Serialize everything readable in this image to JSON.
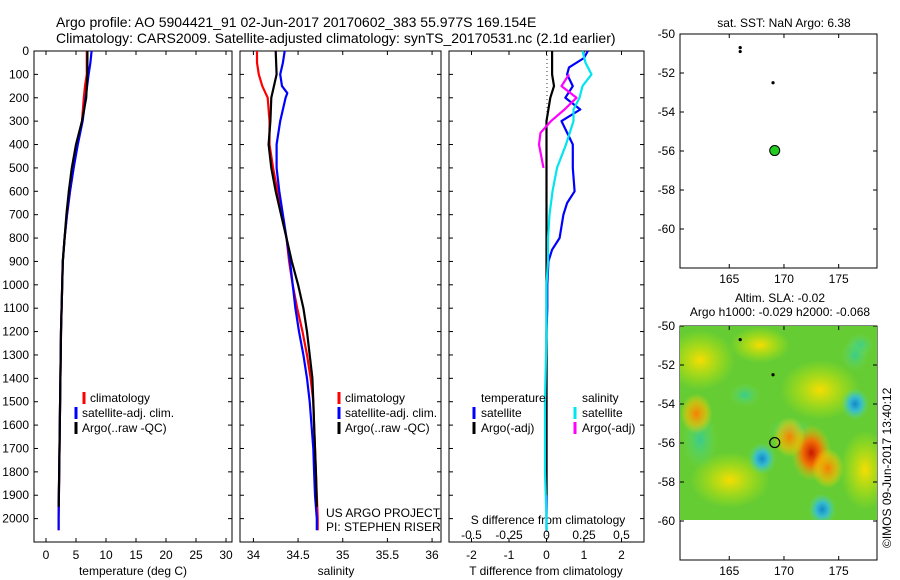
{
  "header": {
    "line1": "Argo profile: AO 5904421_91 02-Jun-2017 20170602_383 55.977S 169.154E",
    "line2": "Climatology: CARS2009. Satellite-adjusted climatology: synTS_20170531.nc (2.1d earlier)"
  },
  "colors": {
    "climatology": "#ff0000",
    "satellite": "#0000ff",
    "argo": "#000000",
    "salinity_diff": "#00e5ee",
    "salinity_diff_argo": "#ff00ff",
    "position_marker": "#22cc22"
  },
  "credit": "©IMOS 09-Jun-2017 13:40:12",
  "chart_data": [
    {
      "type": "line",
      "id": "temperature",
      "xlabel": "temperature (deg C)",
      "xlim": [
        -2,
        31
      ],
      "xticks": [
        0,
        5,
        10,
        15,
        20,
        25,
        30
      ],
      "xtick_labels": [
        "0",
        "5",
        "10",
        "15",
        "20",
        "25",
        "30"
      ],
      "ylim": [
        2100,
        0
      ],
      "yticks": [
        0,
        100,
        200,
        300,
        400,
        500,
        600,
        700,
        800,
        900,
        1000,
        1100,
        1200,
        1300,
        1400,
        1500,
        1600,
        1700,
        1800,
        1900,
        2000
      ],
      "ytick_labels": [
        "0",
        "100",
        "200",
        "300",
        "400",
        "500",
        "600",
        "700",
        "800",
        "900",
        "1000",
        "1100",
        "1200",
        "1300",
        "1400",
        "1500",
        "1600",
        "1700",
        "1800",
        "1900",
        "2000"
      ],
      "legend": [
        "climatology",
        "satellite-adj. clim.",
        "Argo(..raw -QC)"
      ],
      "series": [
        {
          "name": "climatology",
          "color": "#ff0000",
          "depth": [
            0,
            100,
            150,
            200,
            300,
            400,
            500,
            600,
            700,
            800,
            900,
            1000,
            1200,
            1400,
            1600,
            1800,
            2000,
            2050
          ],
          "values": [
            6.8,
            6.8,
            6.5,
            6.3,
            6.0,
            5.2,
            4.6,
            4.0,
            3.5,
            3.1,
            2.8,
            2.7,
            2.5,
            2.4,
            2.3,
            2.2,
            2.1,
            2.1
          ]
        },
        {
          "name": "satellite-adj. clim.",
          "color": "#0000ff",
          "depth": [
            0,
            50,
            100,
            200,
            300,
            400,
            500,
            600,
            700,
            800,
            900,
            1000,
            1200,
            1400,
            1600,
            1800,
            2000,
            2050
          ],
          "values": [
            7.6,
            7.4,
            7.1,
            6.6,
            6.1,
            5.3,
            4.6,
            4.0,
            3.5,
            3.1,
            2.8,
            2.7,
            2.5,
            2.4,
            2.3,
            2.2,
            2.1,
            2.1
          ]
        },
        {
          "name": "Argo(..raw -QC)",
          "color": "#000000",
          "depth": [
            0,
            100,
            200,
            300,
            400,
            500,
            600,
            700,
            800,
            900,
            1000,
            1200,
            1400,
            1600,
            1800,
            1950
          ],
          "values": [
            6.9,
            6.9,
            6.7,
            6.0,
            5.0,
            4.3,
            3.8,
            3.4,
            3.1,
            2.8,
            2.7,
            2.5,
            2.4,
            2.3,
            2.2,
            2.1
          ]
        }
      ]
    },
    {
      "type": "line",
      "id": "salinity",
      "xlabel": "salinity",
      "xlim": [
        33.85,
        36.1
      ],
      "xticks": [
        34,
        34.5,
        35,
        35.5,
        36
      ],
      "xtick_labels": [
        "34",
        "34.5",
        "35",
        "35.5",
        "36"
      ],
      "ylim": [
        2100,
        0
      ],
      "legend": [
        "climatology",
        "satellite-adj. clim.",
        "Argo(..raw -QC)"
      ],
      "annotations": [
        "US ARGO PROJECT",
        "PI: STEPHEN RISER"
      ],
      "series": [
        {
          "name": "climatology",
          "color": "#ff0000",
          "depth": [
            0,
            50,
            100,
            150,
            200,
            300,
            400,
            500,
            600,
            700,
            800,
            900,
            1000,
            1100,
            1200,
            1300,
            1400,
            1500,
            1600,
            1700,
            1800,
            1900,
            2000,
            2050
          ],
          "values": [
            34.04,
            34.04,
            34.06,
            34.1,
            34.16,
            34.18,
            34.18,
            34.22,
            34.27,
            34.32,
            34.37,
            34.4,
            34.44,
            34.49,
            34.55,
            34.6,
            34.64,
            34.67,
            34.68,
            34.69,
            34.7,
            34.71,
            34.72,
            34.72
          ]
        },
        {
          "name": "satellite-adj. clim.",
          "color": "#0000ff",
          "depth": [
            0,
            50,
            100,
            150,
            180,
            200,
            300,
            400,
            500,
            600,
            700,
            800,
            900,
            1000,
            1100,
            1200,
            1300,
            1400,
            1500,
            1600,
            1700,
            1800,
            1900,
            2000,
            2050
          ],
          "values": [
            34.35,
            34.33,
            34.3,
            34.32,
            34.38,
            34.36,
            34.3,
            34.26,
            34.26,
            34.29,
            34.33,
            34.37,
            34.41,
            34.44,
            34.47,
            34.51,
            34.56,
            34.6,
            34.63,
            34.65,
            34.67,
            34.68,
            34.69,
            34.71,
            34.71
          ]
        },
        {
          "name": "Argo(..raw -QC)",
          "color": "#000000",
          "depth": [
            0,
            100,
            200,
            300,
            400,
            500,
            600,
            700,
            800,
            900,
            1000,
            1100,
            1200,
            1300,
            1400,
            1500,
            1600,
            1700,
            1800,
            1950
          ],
          "values": [
            34.25,
            34.26,
            34.2,
            34.19,
            34.17,
            34.2,
            34.25,
            34.31,
            34.37,
            34.43,
            34.5,
            34.56,
            34.6,
            34.63,
            34.66,
            34.67,
            34.68,
            34.69,
            34.7,
            34.71
          ]
        }
      ]
    },
    {
      "type": "line",
      "id": "difference",
      "xlabel": "T difference from climatology",
      "xlabel_top": "S difference from climatology",
      "xlim": [
        -2.6,
        2.6
      ],
      "xticks": [
        -2,
        -1,
        0,
        1,
        2
      ],
      "xtick_labels": [
        "-2",
        "-1",
        "0",
        "1",
        "2"
      ],
      "xticks_s": [
        -0.5,
        -0.25,
        0,
        0.25,
        0.5
      ],
      "xtick_labels_s": [
        "-0.5",
        "-0.25",
        "0",
        "0.25",
        "0.5"
      ],
      "ylim": [
        2100,
        0
      ],
      "legend_temperature": {
        "title": "temperature",
        "items": [
          "satellite",
          "Argo(-adj)"
        ]
      },
      "legend_salinity": {
        "title": "salinity",
        "items": [
          "satellite",
          "Argo(-adj)"
        ]
      },
      "series": [
        {
          "name": "T satellite",
          "color": "#0000ff",
          "depth": [
            0,
            30,
            70,
            100,
            150,
            200,
            250,
            300,
            400,
            500,
            600,
            650,
            700,
            800,
            850,
            900,
            1000,
            1100,
            1200,
            1400,
            1600,
            1800,
            2000,
            2050
          ],
          "values": [
            1.1,
            1.0,
            0.6,
            0.55,
            0.7,
            0.5,
            0.9,
            0.4,
            0.7,
            0.7,
            0.75,
            0.55,
            0.45,
            0.35,
            0.15,
            0.05,
            0.02,
            0.02,
            0.0,
            0.0,
            0.0,
            0.0,
            0.0,
            0.0
          ]
        },
        {
          "name": "T Argo(-adj)",
          "color": "#000000",
          "depth": [
            0,
            50,
            100,
            150,
            200,
            300,
            600,
            1000,
            1200,
            1300,
            1600,
            1900
          ],
          "values": [
            0.15,
            0.15,
            0.15,
            0.2,
            0.1,
            0.0,
            0.0,
            0.0,
            0.0,
            0.0,
            0.0,
            0.0
          ]
        },
        {
          "name": "S satellite",
          "color": "#00e5ee",
          "depth": [
            0,
            50,
            100,
            150,
            200,
            250,
            300,
            400,
            500,
            600,
            700,
            800,
            900,
            1000,
            1200,
            1500,
            1800,
            2000,
            2050
          ],
          "values": [
            0.24,
            0.26,
            0.3,
            0.24,
            0.22,
            0.18,
            0.18,
            0.13,
            0.07,
            0.04,
            0.02,
            0.01,
            0.01,
            0.0,
            0.0,
            -0.01,
            -0.01,
            0.0,
            0.0
          ]
        },
        {
          "name": "S Argo(-adj)",
          "color": "#ff00ff",
          "depth": [
            100,
            150,
            200,
            250,
            300,
            350,
            400,
            500
          ],
          "values": [
            0.15,
            0.1,
            0.2,
            0.12,
            0.03,
            -0.04,
            -0.05,
            -0.02
          ]
        }
      ]
    },
    {
      "type": "scatter",
      "id": "map-sst",
      "title": "sat. SST: NaN Argo: 6.38",
      "xlim": [
        160.5,
        178.5
      ],
      "ylim": [
        -62,
        -50
      ],
      "xticks": [
        165,
        170,
        175
      ],
      "xtick_labels": [
        "165",
        "170",
        "175"
      ],
      "yticks": [
        -50,
        -52,
        -54,
        -56,
        -58,
        -60
      ],
      "ytick_labels": [
        "-50",
        "-52",
        "-54",
        "-56",
        "-58",
        "-60"
      ],
      "points": [
        {
          "lon": 166.0,
          "lat": -50.7,
          "kind": "dot"
        },
        {
          "lon": 166.0,
          "lat": -50.9,
          "kind": "dot"
        },
        {
          "lon": 169.0,
          "lat": -52.5,
          "kind": "dot"
        },
        {
          "lon": 169.154,
          "lat": -55.977,
          "kind": "argo"
        }
      ]
    },
    {
      "type": "heatmap",
      "id": "map-sla",
      "title_line1": "Altim. SLA: -0.02",
      "title_line2": "Argo h1000: -0.029 h2000: -0.068",
      "xlim": [
        160.5,
        178.5
      ],
      "ylim": [
        -62,
        -50
      ],
      "data_lat_range": [
        -60,
        -50
      ],
      "xticks": [
        165,
        170,
        175
      ],
      "xtick_labels": [
        "165",
        "170",
        "175"
      ],
      "yticks": [
        -50,
        -52,
        -54,
        -56,
        -58,
        -60
      ],
      "ytick_labels": [
        "-50",
        "-52",
        "-54",
        "-56",
        "-58",
        "-60"
      ],
      "features": [
        {
          "lon": 172.5,
          "lat": -56.5,
          "kind": "high",
          "color": "#cc2200"
        },
        {
          "lon": 174.0,
          "lat": -57.3,
          "kind": "high",
          "color": "#ff7700"
        },
        {
          "lon": 170.5,
          "lat": -55.7,
          "kind": "high",
          "color": "#ff8800"
        },
        {
          "lon": 162.0,
          "lat": -54.5,
          "kind": "high",
          "color": "#ff9900"
        },
        {
          "lon": 176.5,
          "lat": -54.0,
          "kind": "low",
          "color": "#1199cc"
        },
        {
          "lon": 173.5,
          "lat": -59.4,
          "kind": "low",
          "color": "#22aadd"
        },
        {
          "lon": 168.0,
          "lat": -56.8,
          "kind": "low",
          "color": "#33bbcc"
        },
        {
          "lon": 176.5,
          "lat": -51.5,
          "kind": "low",
          "color": "#55cc88"
        }
      ],
      "points": [
        {
          "lon": 166.0,
          "lat": -50.7,
          "kind": "dot"
        },
        {
          "lon": 169.0,
          "lat": -52.5,
          "kind": "dot"
        },
        {
          "lon": 169.154,
          "lat": -55.977,
          "kind": "argo"
        }
      ]
    }
  ]
}
